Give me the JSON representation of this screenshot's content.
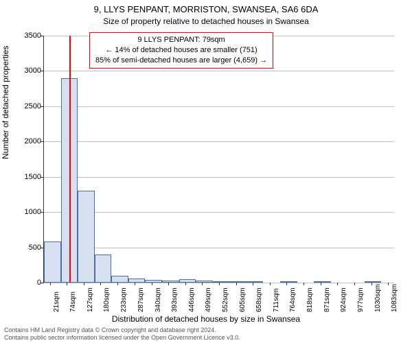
{
  "title": "9, LLYS PENPANT, MORRISTON, SWANSEA, SA6 6DA",
  "subtitle": "Size of property relative to detached houses in Swansea",
  "annotation": {
    "line1": "9 LLYS PENPANT: 79sqm",
    "line2": "← 14% of detached houses are smaller (751)",
    "line3": "85% of semi-detached houses are larger (4,659) →"
  },
  "xlabel": "Distribution of detached houses by size in Swansea",
  "ylabel": "Number of detached properties",
  "footer": {
    "line1": "Contains HM Land Registry data © Crown copyright and database right 2024.",
    "line2": "Contains public sector information licensed under the Open Government Licence v3.0."
  },
  "chart": {
    "type": "histogram",
    "y_max": 3500,
    "y_ticks": [
      0,
      500,
      1000,
      1500,
      2000,
      2500,
      3000,
      3500
    ],
    "x_ticks": [
      21,
      74,
      127,
      180,
      233,
      287,
      340,
      393,
      446,
      499,
      552,
      605,
      658,
      711,
      764,
      818,
      871,
      924,
      977,
      1030,
      1083
    ],
    "x_unit": "sqm",
    "x_min": 0,
    "x_max": 1100,
    "bar_fill": "#d6e0f0",
    "bar_border": "#4a6fa5",
    "grid_color": "#bfbfbf",
    "background_color": "#ffffff",
    "marker_x": 79,
    "marker_color": "#ff0000",
    "title_fontsize": 13,
    "subtitle_fontsize": 12,
    "label_fontsize": 12,
    "tick_fontsize": 11,
    "bars": [
      {
        "x0": 0,
        "x1": 53,
        "y": 580
      },
      {
        "x0": 53,
        "x1": 106,
        "y": 2900
      },
      {
        "x0": 106,
        "x1": 159,
        "y": 1300
      },
      {
        "x0": 159,
        "x1": 212,
        "y": 400
      },
      {
        "x0": 212,
        "x1": 265,
        "y": 100
      },
      {
        "x0": 265,
        "x1": 318,
        "y": 60
      },
      {
        "x0": 318,
        "x1": 371,
        "y": 40
      },
      {
        "x0": 371,
        "x1": 424,
        "y": 25
      },
      {
        "x0": 424,
        "x1": 477,
        "y": 45
      },
      {
        "x0": 477,
        "x1": 530,
        "y": 30
      },
      {
        "x0": 530,
        "x1": 583,
        "y": 8
      },
      {
        "x0": 583,
        "x1": 636,
        "y": 6
      },
      {
        "x0": 636,
        "x1": 689,
        "y": 6
      },
      {
        "x0": 689,
        "x1": 742,
        "y": 0
      },
      {
        "x0": 742,
        "x1": 795,
        "y": 4
      },
      {
        "x0": 795,
        "x1": 848,
        "y": 0
      },
      {
        "x0": 848,
        "x1": 901,
        "y": 4
      },
      {
        "x0": 901,
        "x1": 954,
        "y": 0
      },
      {
        "x0": 954,
        "x1": 1007,
        "y": 0
      },
      {
        "x0": 1007,
        "x1": 1060,
        "y": 4
      },
      {
        "x0": 1060,
        "x1": 1113,
        "y": 0
      }
    ]
  }
}
